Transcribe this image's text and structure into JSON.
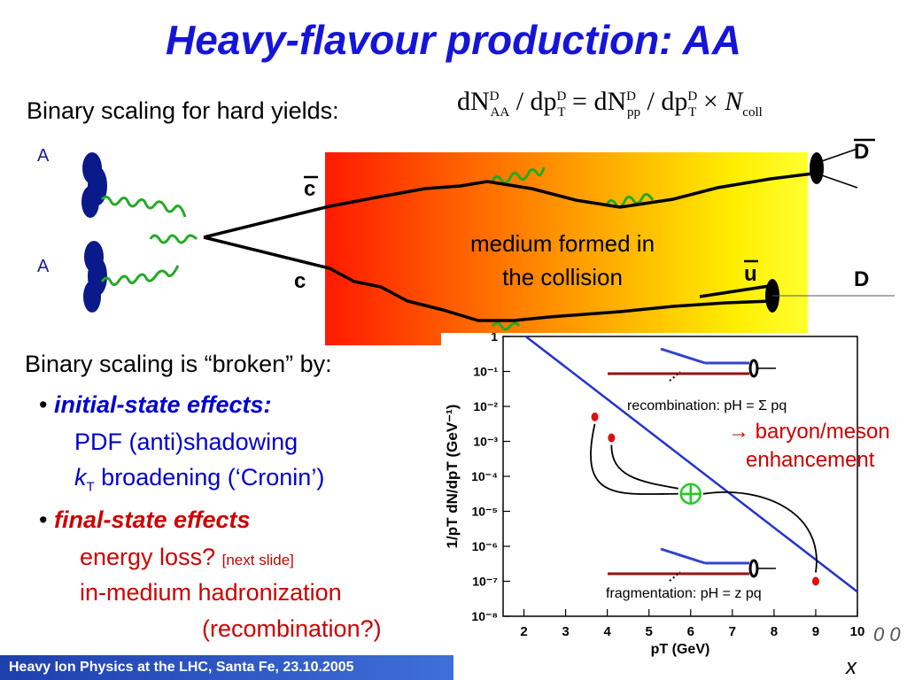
{
  "title": "Heavy-flavour production: AA",
  "intro": {
    "binary_scaling": "Binary scaling for hard yields:"
  },
  "formula": {
    "lhs_num": "dN",
    "lhs_num_sup": "D",
    "lhs_num_sub": "AA",
    "lhs_den": "dp",
    "lhs_den_sup": "D",
    "lhs_den_sub": "T",
    "rhs_num": "dN",
    "rhs_num_sup": "D",
    "rhs_num_sub": "pp",
    "rhs_den": "dp",
    "rhs_den_sup": "D",
    "rhs_den_sub": "T",
    "ncoll": "N",
    "ncoll_sub": "coll",
    "slash": "/",
    "equals": "=",
    "times": "×"
  },
  "diagram": {
    "nucleus_top": "A",
    "nucleus_bottom": "A",
    "charm_bar": "c",
    "charm": "c",
    "up_bar": "u",
    "d_bar_meson": "D",
    "d_meson": "D",
    "medium_line1": "medium formed in",
    "medium_line2": "the collision",
    "colors": {
      "nucleus": "#0a1a8a",
      "gluon": "#22aa22",
      "quark_line": "#000000"
    }
  },
  "broken": {
    "heading": "Binary scaling is “broken” by:",
    "bullet": "•",
    "initial_label": "initial-state effects:",
    "pdf_line": "PDF (anti)shadowing",
    "kt_k": "k",
    "kt_sub": "T",
    "kt_rest": " broadening (‘Cronin’)",
    "final_label": "final-state effects",
    "energy_loss": "energy loss?",
    "next_slide": "[next slide]",
    "hadronization": "in-medium hadronization",
    "recombination": "(recombination?)",
    "colors": {
      "initial": "#0000cc",
      "final": "#cc0000"
    }
  },
  "chart_data": {
    "type": "line",
    "ylabel": "1/pT dN/dpT (GeV⁻¹)",
    "xlabel": "pT (GeV)",
    "x_ticks": [
      "2",
      "3",
      "4",
      "5",
      "6",
      "7",
      "8",
      "9",
      "10"
    ],
    "y_ticks": [
      "1",
      "10⁻¹",
      "10⁻²",
      "10⁻³",
      "10⁻⁴",
      "10⁻⁵",
      "10⁻⁶",
      "10⁻⁷",
      "10⁻⁸"
    ],
    "xlim": [
      1.5,
      10
    ],
    "ylim_log10": [
      -8,
      0
    ],
    "log_y": true,
    "series": [
      {
        "x": [
          1.5,
          10
        ],
        "log10_y": [
          0.5,
          -7.3
        ]
      }
    ],
    "points": [
      {
        "x": 3.7,
        "log10_y": -2.3
      },
      {
        "x": 4.1,
        "log10_y": -2.9
      },
      {
        "x": 9.0,
        "log10_y": -7.0
      }
    ],
    "combined_point": {
      "x": 6.0,
      "log10_y": -4.5
    },
    "annotations": {
      "recombination": "recombination: pH = Σ pq",
      "fragmentation": "fragmentation: pH = z pq",
      "baryon_line1": "→ baryon/meson",
      "baryon_line2": "enhancement"
    },
    "colors": {
      "curve": "#2233cc",
      "points": "#dd1111",
      "combine": "#22cc22",
      "arrow_blue": "#3344cc",
      "arrow_red": "#991111",
      "annotation": "#cc0000"
    }
  },
  "stray": {
    "zero_text": "0 0",
    "x_text": "x"
  },
  "footer": "Heavy Ion Physics at the LHC, Santa Fe, 23.10.2005"
}
